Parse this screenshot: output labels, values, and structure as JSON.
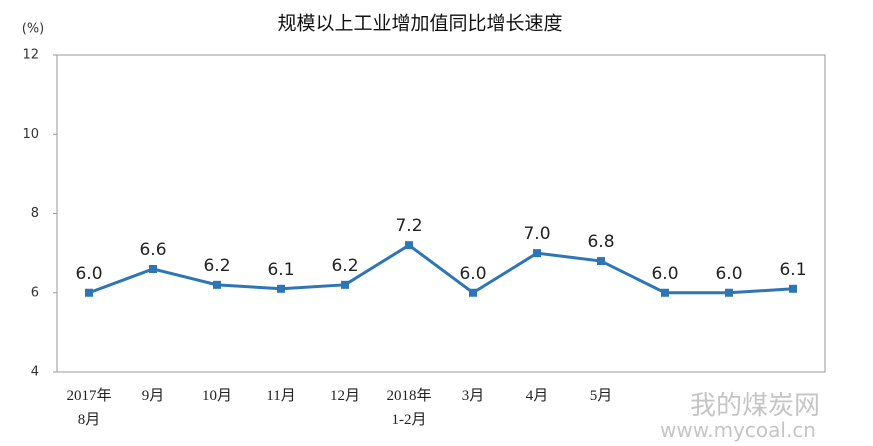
{
  "chart_data": {
    "type": "line",
    "title": "规模以上工业增加值同比增长速度",
    "unit": "(%)",
    "categories": [
      "2017年\n8月",
      "9月",
      "10月",
      "11月",
      "12月",
      "2018年\n1-2月",
      "3月",
      "4月",
      "5月",
      null,
      null,
      null
    ],
    "series": [
      {
        "name": "规模以上工业增加值同比增长速度",
        "color": "#2e75b6",
        "values": [
          6.0,
          6.6,
          6.2,
          6.1,
          6.2,
          7.2,
          6.0,
          7.0,
          6.8,
          6.0,
          6.0,
          6.1
        ],
        "value_labels": [
          "6.0",
          "6.6",
          "6.2",
          "6.1",
          "6.2",
          "7.2",
          "6.0",
          "7.0",
          "6.8",
          "6.0",
          "6.0",
          "6.1"
        ]
      }
    ],
    "ylim": [
      4,
      12
    ],
    "yticks": [
      4,
      6,
      8,
      10,
      12
    ],
    "grid": false,
    "watermark": [
      "我的煤炭网",
      "www.mycoal.cn"
    ]
  }
}
